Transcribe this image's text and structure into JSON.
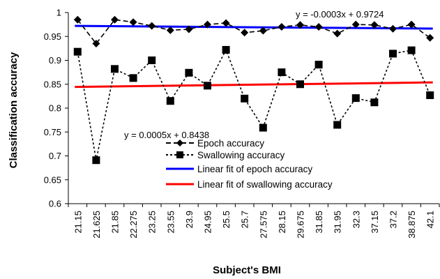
{
  "chart_data": {
    "type": "line",
    "xlabel": "Subject's BMI",
    "ylabel": "Classification accuracy",
    "ylim": [
      0.6,
      1.0
    ],
    "yticks": [
      "0.6",
      "0.65",
      "0.7",
      "0.75",
      "0.8",
      "0.85",
      "0.9",
      "0.95",
      "1"
    ],
    "categories": [
      "21.15",
      "21.625",
      "21.85",
      "22.275",
      "23.25",
      "23.55",
      "23.9",
      "24.95",
      "25.5",
      "25.7",
      "27.575",
      "28.15",
      "29.675",
      "31.85",
      "31.95",
      "32.3",
      "37.15",
      "37.2",
      "38.875",
      "42.1"
    ],
    "series": [
      {
        "name": "Epoch accuracy",
        "marker": "diamond",
        "line_style": "dashed",
        "color": "#000000",
        "values": [
          0.985,
          0.935,
          0.985,
          0.98,
          0.972,
          0.963,
          0.965,
          0.975,
          0.978,
          0.958,
          0.962,
          0.97,
          0.974,
          0.97,
          0.956,
          0.975,
          0.974,
          0.966,
          0.975,
          0.947
        ]
      },
      {
        "name": "Swallowing accuracy",
        "marker": "square",
        "line_style": "dotted",
        "color": "#000000",
        "values": [
          0.918,
          0.691,
          0.882,
          0.863,
          0.9,
          0.815,
          0.874,
          0.847,
          0.922,
          0.82,
          0.759,
          0.875,
          0.85,
          0.891,
          0.765,
          0.821,
          0.812,
          0.914,
          0.921,
          0.827
        ]
      }
    ],
    "fits": [
      {
        "name": "Linear fit of epoch accuracy",
        "color": "#0000ff",
        "slope": -0.0003,
        "intercept": 0.9724,
        "equation": "y = -0.0003x + 0.9724"
      },
      {
        "name": "Linear fit of swallowing accuracy",
        "color": "#ff0000",
        "slope": 0.0005,
        "intercept": 0.8438,
        "equation": "y = 0.0005x + 0.8438"
      }
    ]
  }
}
